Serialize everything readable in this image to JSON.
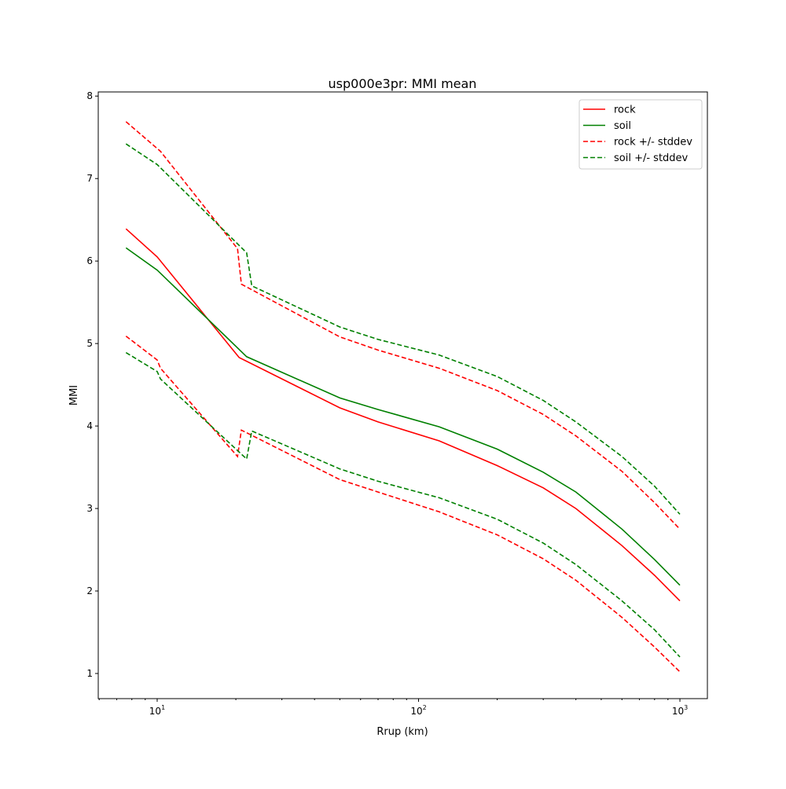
{
  "chart_data": {
    "type": "line",
    "title": "usp000e3pr: MMI mean",
    "xlabel": "Rrup (km)",
    "ylabel": "MMI",
    "xscale": "log",
    "xlim": [
      5.95,
      1274
    ],
    "ylim": [
      0.695,
      8.05
    ],
    "xticks": [
      {
        "v": 10,
        "b": "10",
        "e": "1"
      },
      {
        "v": 100,
        "b": "10",
        "e": "2"
      },
      {
        "v": 1000,
        "b": "10",
        "e": "3"
      }
    ],
    "yticks": [
      1,
      2,
      3,
      4,
      5,
      6,
      7,
      8
    ],
    "legend": {
      "placement": "top-right"
    },
    "series": [
      {
        "name": "rock",
        "color": "#ff0000",
        "dash": false,
        "x": [
          7.6,
          10,
          20.6,
          50,
          70,
          120,
          200,
          300,
          400,
          600,
          800,
          1000
        ],
        "y": [
          6.39,
          6.05,
          4.83,
          4.22,
          4.05,
          3.82,
          3.52,
          3.25,
          3.0,
          2.55,
          2.19,
          1.88
        ]
      },
      {
        "name": "soil",
        "color": "#008000",
        "dash": false,
        "x": [
          7.6,
          10,
          22,
          50,
          70,
          120,
          200,
          300,
          400,
          600,
          800,
          1000
        ],
        "y": [
          6.16,
          5.89,
          4.84,
          4.34,
          4.2,
          3.99,
          3.72,
          3.44,
          3.2,
          2.75,
          2.38,
          2.07
        ]
      },
      {
        "name": "rock +/- stddev",
        "color": "#ff0000",
        "dash": true,
        "x": [
          7.6,
          10.3,
          20.3,
          21,
          50,
          70,
          120,
          200,
          300,
          400,
          600,
          800,
          1000
        ],
        "y": [
          7.69,
          7.33,
          6.15,
          5.72,
          5.08,
          4.92,
          4.7,
          4.43,
          4.14,
          3.88,
          3.45,
          3.07,
          2.75
        ]
      },
      {
        "name": "rock +/- stddev (lower)",
        "color": "#ff0000",
        "dash": true,
        "legend": false,
        "x": [
          7.6,
          10,
          10.3,
          20.3,
          21,
          50,
          70,
          120,
          200,
          300,
          400,
          600,
          800,
          1000
        ],
        "y": [
          5.09,
          4.8,
          4.7,
          3.63,
          3.95,
          3.35,
          3.2,
          2.96,
          2.68,
          2.39,
          2.13,
          1.68,
          1.32,
          1.02
        ]
      },
      {
        "name": "soil +/- stddev",
        "color": "#008000",
        "dash": true,
        "x": [
          7.6,
          10,
          22,
          23,
          50,
          70,
          120,
          200,
          300,
          400,
          600,
          800,
          1000
        ],
        "y": [
          7.42,
          7.17,
          6.1,
          5.7,
          5.2,
          5.05,
          4.86,
          4.6,
          4.31,
          4.05,
          3.63,
          3.27,
          2.93
        ]
      },
      {
        "name": "soil +/- stddev (lower)",
        "color": "#008000",
        "dash": true,
        "legend": false,
        "x": [
          7.6,
          10,
          10.3,
          22,
          23,
          50,
          70,
          120,
          200,
          300,
          400,
          600,
          800,
          1000
        ],
        "y": [
          4.89,
          4.66,
          4.57,
          3.6,
          3.94,
          3.48,
          3.33,
          3.13,
          2.87,
          2.58,
          2.32,
          1.88,
          1.53,
          1.2
        ]
      }
    ]
  }
}
